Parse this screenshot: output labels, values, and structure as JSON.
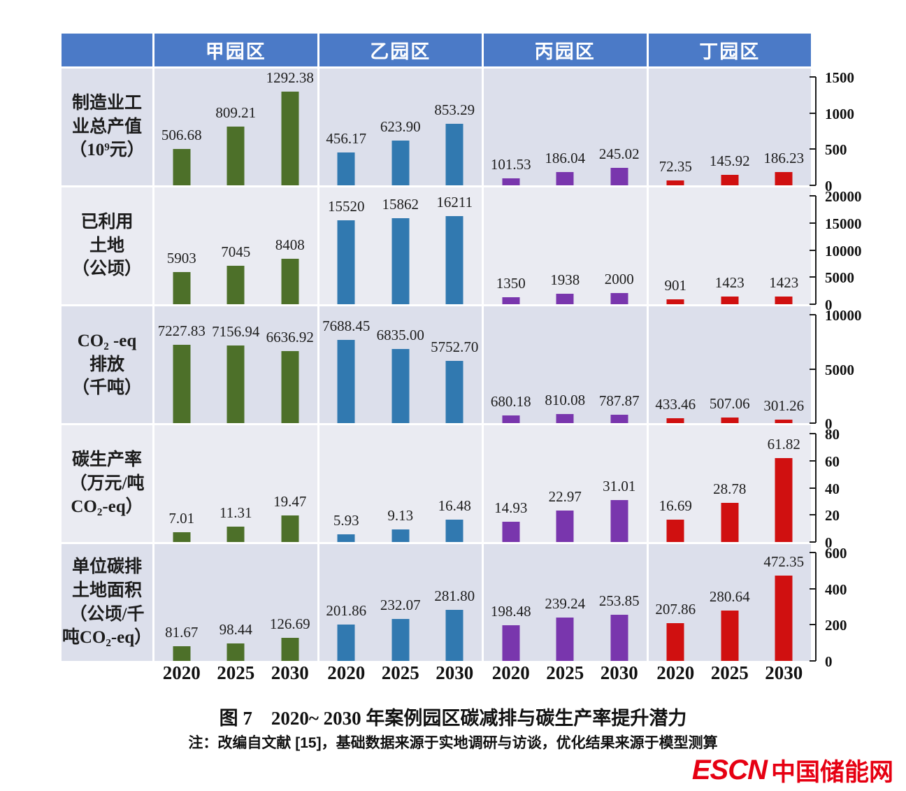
{
  "parks": [
    {
      "name": "甲园区",
      "color": "#4d7029"
    },
    {
      "name": "乙园区",
      "color": "#3179b0"
    },
    {
      "name": "丙园区",
      "color": "#7936ad"
    },
    {
      "name": "丁园区",
      "color": "#d01010"
    }
  ],
  "years": [
    "2020",
    "2025",
    "2030"
  ],
  "colors": {
    "header_blue": "#4b7ac7",
    "row_dark": "#dcdfeb",
    "row_light": "#eaebf2",
    "logo_red": "#e60012"
  },
  "chart_data": [
    {
      "type": "bar",
      "metric": "制造业工业总产值（10⁹元）",
      "label_lines": [
        "制造业工",
        "业总产值",
        "（10⁹元）"
      ],
      "ylim": [
        0,
        1500
      ],
      "yticks": [
        1500,
        1000,
        500,
        0
      ],
      "categories": [
        "2020",
        "2025",
        "2030"
      ],
      "series": [
        {
          "name": "甲园区",
          "values": [
            506.68,
            809.21,
            1292.38
          ],
          "labels": [
            "506.68",
            "809.21",
            "1292.38"
          ]
        },
        {
          "name": "乙园区",
          "values": [
            456.17,
            623.9,
            853.29
          ],
          "labels": [
            "456.17",
            "623.90",
            "853.29"
          ]
        },
        {
          "name": "丙园区",
          "values": [
            101.53,
            186.04,
            245.02
          ],
          "labels": [
            "101.53",
            "186.04",
            "245.02"
          ]
        },
        {
          "name": "丁园区",
          "values": [
            72.35,
            145.92,
            186.23
          ],
          "labels": [
            "72.35",
            "145.92",
            "186.23"
          ]
        }
      ]
    },
    {
      "type": "bar",
      "metric": "已利用土地（公顷）",
      "label_lines": [
        "已利用",
        "土地",
        "（公顷）"
      ],
      "ylim": [
        0,
        20000
      ],
      "yticks": [
        20000,
        15000,
        10000,
        5000,
        0
      ],
      "categories": [
        "2020",
        "2025",
        "2030"
      ],
      "series": [
        {
          "name": "甲园区",
          "values": [
            5903,
            7045,
            8408
          ],
          "labels": [
            "5903",
            "7045",
            "8408"
          ]
        },
        {
          "name": "乙园区",
          "values": [
            15520,
            15862,
            16211
          ],
          "labels": [
            "15520",
            "15862",
            "16211"
          ]
        },
        {
          "name": "丙园区",
          "values": [
            1350,
            1938,
            2000
          ],
          "labels": [
            "1350",
            "1938",
            "2000"
          ]
        },
        {
          "name": "丁园区",
          "values": [
            901,
            1423,
            1423
          ],
          "labels": [
            "901",
            "1423",
            "1423"
          ]
        }
      ]
    },
    {
      "type": "bar",
      "metric": "CO₂-eq 排放（千吨）",
      "label_lines": [
        "CO₂ -eq",
        "排放",
        "（千吨）"
      ],
      "ylim": [
        0,
        10000
      ],
      "yticks": [
        10000,
        5000,
        0
      ],
      "categories": [
        "2020",
        "2025",
        "2030"
      ],
      "series": [
        {
          "name": "甲园区",
          "values": [
            7227.83,
            7156.94,
            6636.92
          ],
          "labels": [
            "7227.83",
            "7156.94",
            "6636.92"
          ]
        },
        {
          "name": "乙园区",
          "values": [
            7688.45,
            6835.0,
            5752.7
          ],
          "labels": [
            "7688.45",
            "6835.00",
            "5752.70"
          ]
        },
        {
          "name": "丙园区",
          "values": [
            680.18,
            810.08,
            787.87
          ],
          "labels": [
            "680.18",
            "810.08",
            "787.87"
          ]
        },
        {
          "name": "丁园区",
          "values": [
            433.46,
            507.06,
            301.26
          ],
          "labels": [
            "433.46",
            "507.06",
            "301.26"
          ]
        }
      ]
    },
    {
      "type": "bar",
      "metric": "碳生产率（万元/吨 CO₂-eq）",
      "label_lines": [
        "碳生产率",
        "（万元/吨",
        "CO₂-eq）"
      ],
      "ylim": [
        0,
        80
      ],
      "yticks": [
        80,
        60,
        40,
        20,
        0
      ],
      "categories": [
        "2020",
        "2025",
        "2030"
      ],
      "series": [
        {
          "name": "甲园区",
          "values": [
            7.01,
            11.31,
            19.47
          ],
          "labels": [
            "7.01",
            "11.31",
            "19.47"
          ]
        },
        {
          "name": "乙园区",
          "values": [
            5.93,
            9.13,
            16.48
          ],
          "labels": [
            "5.93",
            "9.13",
            "16.48"
          ]
        },
        {
          "name": "丙园区",
          "values": [
            14.93,
            22.97,
            31.01
          ],
          "labels": [
            "14.93",
            "22.97",
            "31.01"
          ]
        },
        {
          "name": "丁园区",
          "values": [
            16.69,
            28.78,
            61.82
          ],
          "labels": [
            "16.69",
            "28.78",
            "61.82"
          ]
        }
      ]
    },
    {
      "type": "bar",
      "metric": "单位碳排土地面积（公顷/千吨CO₂-eq）",
      "label_lines": [
        "单位碳排",
        "土地面积",
        "（公顷/千",
        "吨CO₂-eq）"
      ],
      "ylim": [
        0,
        600
      ],
      "yticks": [
        600,
        400,
        200,
        0
      ],
      "categories": [
        "2020",
        "2025",
        "2030"
      ],
      "series": [
        {
          "name": "甲园区",
          "values": [
            81.67,
            98.44,
            126.69
          ],
          "labels": [
            "81.67",
            "98.44",
            "126.69"
          ]
        },
        {
          "name": "乙园区",
          "values": [
            201.86,
            232.07,
            281.8
          ],
          "labels": [
            "201.86",
            "232.07",
            "281.80"
          ]
        },
        {
          "name": "丙园区",
          "values": [
            198.48,
            239.24,
            253.85
          ],
          "labels": [
            "198.48",
            "239.24",
            "253.85"
          ]
        },
        {
          "name": "丁园区",
          "values": [
            207.86,
            280.64,
            472.35
          ],
          "labels": [
            "207.86",
            "280.64",
            "472.35"
          ]
        }
      ]
    }
  ],
  "caption": {
    "figure_title": "图 7　2020~ 2030 年案例园区碳减排与碳生产率提升潜力",
    "note": "注：改编自文献 [15]，基础数据来源于实地调研与访谈，优化结果来源于模型测算"
  },
  "logo": {
    "escn": "ESCN",
    "cn": "中国储能网"
  }
}
